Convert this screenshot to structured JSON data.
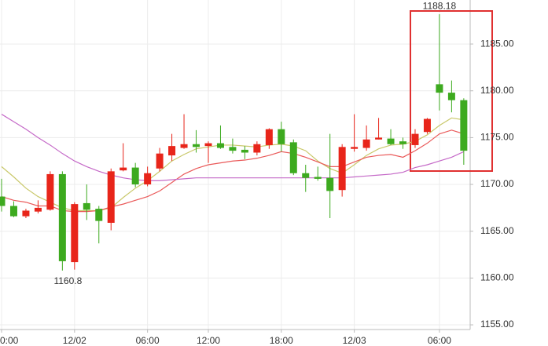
{
  "chart_data": {
    "type": "candlestick",
    "categories": [
      "0:00",
      null,
      null,
      null,
      null,
      null,
      "12/02",
      null,
      null,
      null,
      null,
      null,
      "06:00",
      null,
      null,
      null,
      null,
      "12:00",
      null,
      null,
      null,
      null,
      null,
      "18:00",
      null,
      null,
      null,
      null,
      null,
      "12/03",
      null,
      null,
      null,
      null,
      null,
      null,
      "06:00",
      null,
      null
    ],
    "open": [
      1168.7,
      1167.7,
      1166.6,
      1167.1,
      1167.3,
      1171.1,
      1161.7,
      1168.0,
      1167.4,
      1165.9,
      1171.5,
      1171.8,
      1170.0,
      1171.7,
      1173.1,
      1173.9,
      1174.3,
      1174.1,
      1174.4,
      1174.0,
      1173.7,
      1173.4,
      1174.2,
      1175.9,
      1174.5,
      1171.2,
      1170.8,
      1170.7,
      1169.4,
      1173.8,
      1173.9,
      1174.8,
      1174.9,
      1174.6,
      1174.2,
      1175.6,
      1180.7,
      1179.8,
      1179.0
    ],
    "high": [
      1170.6,
      1168.2,
      1167.4,
      1168.3,
      1171.4,
      1171.4,
      1168.1,
      1170.0,
      1167.7,
      1171.7,
      1174.4,
      1172.3,
      1171.9,
      1173.9,
      1175.4,
      1177.5,
      1175.8,
      1174.6,
      1176.3,
      1174.9,
      1174.1,
      1174.6,
      1176.0,
      1176.7,
      1174.8,
      1172.1,
      1171.9,
      1175.4,
      1174.3,
      1177.5,
      1176.3,
      1177.1,
      1175.9,
      1175.0,
      1175.9,
      1177.1,
      1188.18,
      1181.1,
      1179.2
    ],
    "low": [
      1167.1,
      1166.5,
      1166.4,
      1166.9,
      1167.2,
      1160.8,
      1160.9,
      1166.2,
      1163.7,
      1165.1,
      1171.4,
      1169.7,
      1169.8,
      1171.4,
      1172.5,
      1173.8,
      1173.4,
      1172.3,
      1173.8,
      1173.3,
      1172.7,
      1173.1,
      1173.8,
      1173.5,
      1171.0,
      1169.2,
      1170.4,
      1166.4,
      1168.7,
      1173.5,
      1173.6,
      1174.8,
      1174.2,
      1173.8,
      1173.9,
      1175.4,
      1177.9,
      1177.7,
      1172.1
    ],
    "close": [
      1167.7,
      1166.6,
      1167.2,
      1167.5,
      1171.1,
      1161.8,
      1167.9,
      1167.3,
      1166.1,
      1171.4,
      1171.8,
      1170.0,
      1171.2,
      1173.3,
      1174.1,
      1174.3,
      1174.0,
      1174.4,
      1173.9,
      1173.6,
      1173.4,
      1174.3,
      1175.9,
      1174.3,
      1171.2,
      1170.7,
      1170.6,
      1169.3,
      1174.0,
      1174.0,
      1174.8,
      1175.0,
      1174.3,
      1174.3,
      1175.4,
      1177.0,
      1179.8,
      1179.0,
      1173.6
    ],
    "up_color": "#e8251a",
    "down_color": "#3daa1f",
    "series": [
      {
        "color": "#c9c86a",
        "values": [
          1171.9,
          1170.8,
          1169.6,
          1168.7,
          1168.1,
          1167.5,
          1167.2,
          1167.2,
          1167.2,
          1167.5,
          1168.6,
          1169.6,
          1170.4,
          1171.4,
          1172.5,
          1173.2,
          1173.8,
          1174.0,
          1174.2,
          1174.2,
          1174.1,
          1174.0,
          1174.2,
          1174.3,
          1174.1,
          1173.6,
          1172.5,
          1171.7,
          1171.2,
          1172.1,
          1173.1,
          1173.8,
          1174.2,
          1174.3,
          1174.6,
          1175.3,
          1176.3,
          1177.1,
          1176.9
        ]
      },
      {
        "color": "#ea5a5a",
        "values": [
          1168.7,
          1168.3,
          1168.1,
          1167.7,
          1167.7,
          1167.2,
          1167.1,
          1167.1,
          1167.2,
          1167.6,
          1167.9,
          1168.3,
          1168.7,
          1169.3,
          1170.2,
          1171.1,
          1171.7,
          1172.1,
          1172.3,
          1172.5,
          1172.6,
          1172.8,
          1173.1,
          1173.5,
          1173.3,
          1172.9,
          1172.4,
          1171.9,
          1171.9,
          1172.4,
          1172.9,
          1173.1,
          1173.2,
          1172.9,
          1173.6,
          1174.4,
          1175.4,
          1175.8,
          1175.4
        ]
      },
      {
        "color": "#c56ac8",
        "values": [
          1177.5,
          1176.7,
          1175.9,
          1175.0,
          1174.2,
          1173.3,
          1172.5,
          1171.9,
          1171.4,
          1171.0,
          1170.7,
          1170.5,
          1170.4,
          1170.4,
          1170.5,
          1170.6,
          1170.7,
          1170.7,
          1170.7,
          1170.7,
          1170.7,
          1170.7,
          1170.7,
          1170.7,
          1170.7,
          1170.7,
          1170.7,
          1170.7,
          1170.7,
          1170.8,
          1170.9,
          1171.0,
          1171.1,
          1171.3,
          1171.8,
          1172.1,
          1172.5,
          1172.9,
          1173.5
        ]
      }
    ],
    "annotations": [
      "1188.18",
      "1160.8"
    ],
    "ylim": [
      1154.5,
      1189.7
    ],
    "yticks": [
      {
        "value": 1155,
        "label": "1155.00"
      },
      {
        "value": 1160,
        "label": "1160.00"
      },
      {
        "value": 1165,
        "label": "1165.00"
      },
      {
        "value": 1170,
        "label": "1170.00"
      },
      {
        "value": 1175,
        "label": "1175.00"
      },
      {
        "value": 1180,
        "label": "1180.00"
      },
      {
        "value": 1185,
        "label": "1185.00"
      }
    ],
    "grid": true
  }
}
